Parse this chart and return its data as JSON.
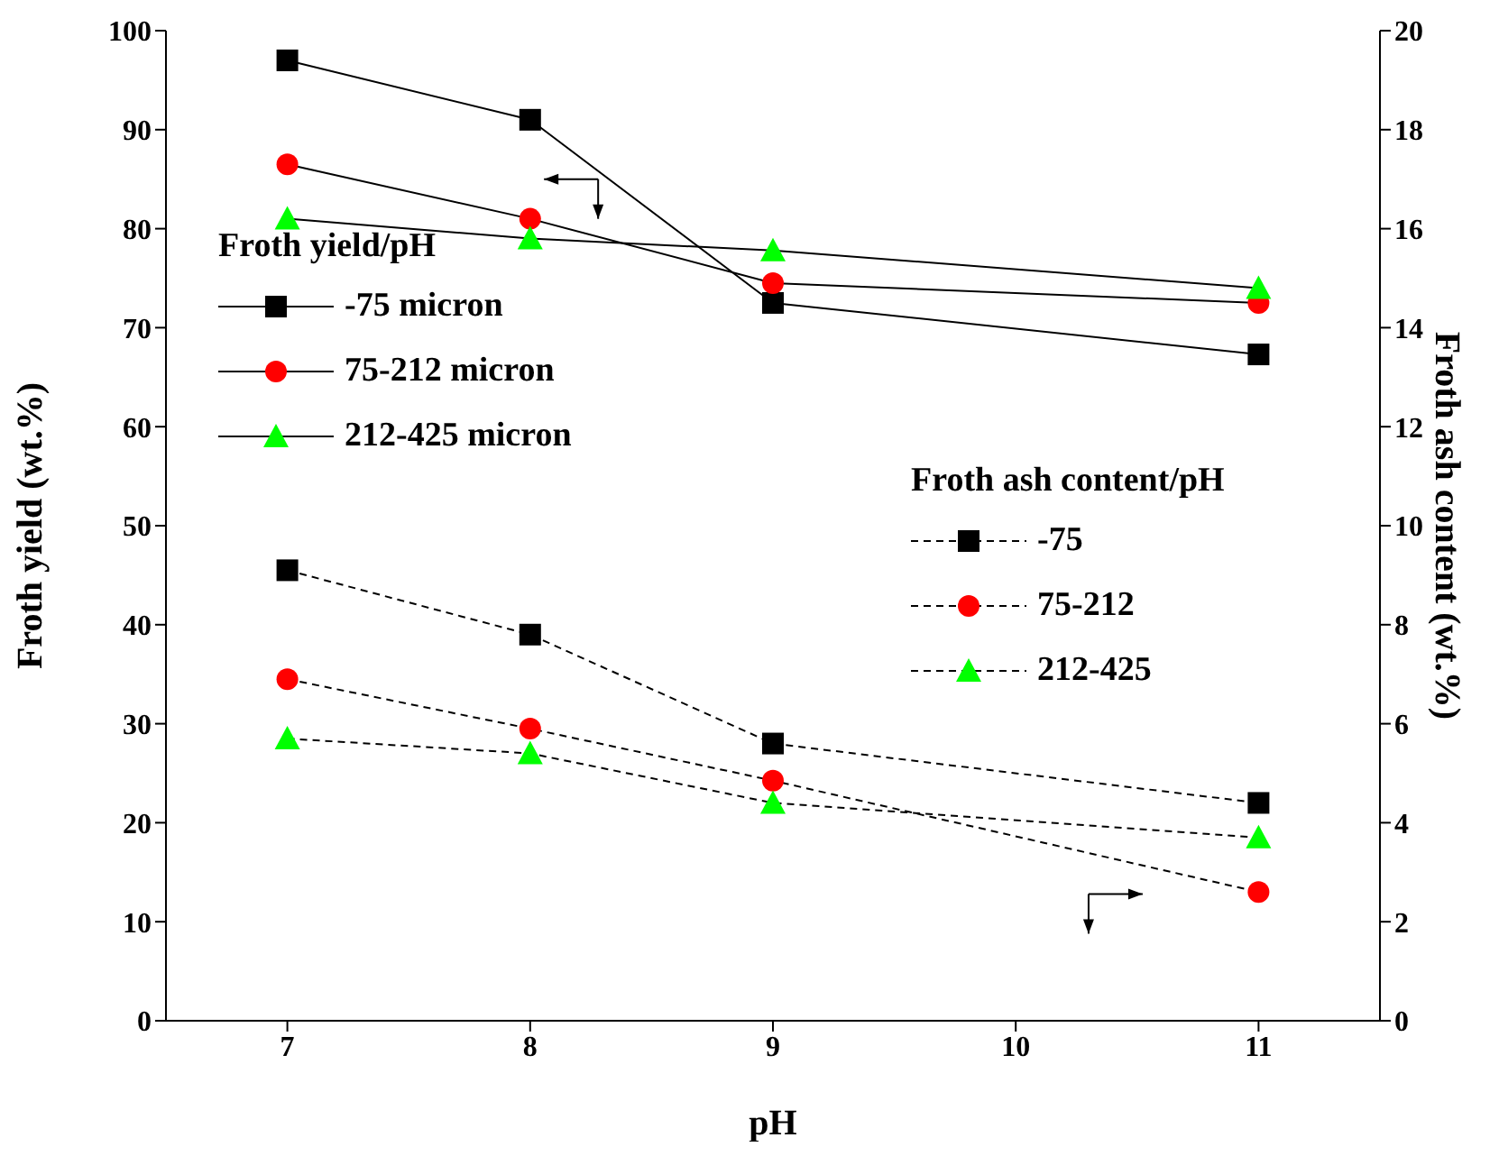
{
  "chart_data": {
    "type": "line",
    "xlabel": "pH",
    "ylabel": "Froth yield (wt.%)",
    "y2label": "Froth ash content (wt.%)",
    "legend_title": "Froth yield/pH",
    "annotations": [
      "Froth ash content/pH"
    ],
    "legend": "left",
    "x": [
      7,
      8,
      9,
      11
    ],
    "xlim": [
      6.5,
      11.5
    ],
    "xticks": [
      7,
      8,
      9,
      10,
      11
    ],
    "ylim": [
      0,
      100
    ],
    "yticks": [
      0,
      10,
      20,
      30,
      40,
      50,
      60,
      70,
      80,
      90,
      100
    ],
    "y2lim": [
      0,
      20
    ],
    "y2ticks": [
      0,
      2,
      4,
      6,
      8,
      10,
      12,
      14,
      16,
      18,
      20
    ],
    "grid": false,
    "series": [
      {
        "name": "-75 micron",
        "color": "#000000",
        "marker": "square",
        "line_style": "solid",
        "values": [
          97,
          91,
          72.5,
          67.3
        ]
      },
      {
        "name": "75-212 micron",
        "color": "#ff0000",
        "marker": "circle",
        "line_style": "solid",
        "values": [
          86.5,
          81,
          74.5,
          72.5
        ]
      },
      {
        "name": "212-425 micron",
        "color": "#00ff00",
        "marker": "triangle",
        "line_style": "solid",
        "values": [
          81,
          79,
          77.8,
          74
        ]
      },
      {
        "name": "-75",
        "color": "#000000",
        "marker": "square",
        "line_style": "dashed",
        "axis": "y2",
        "values": [
          9.1,
          7.8,
          5.6,
          4.4
        ]
      },
      {
        "name": "75-212",
        "color": "#ff0000",
        "marker": "circle",
        "line_style": "dashed",
        "axis": "y2",
        "values": [
          6.9,
          5.9,
          4.85,
          2.6
        ]
      },
      {
        "name": "212-425",
        "color": "#00ff00",
        "marker": "triangle",
        "line_style": "dashed",
        "axis": "y2",
        "values": [
          5.7,
          5.4,
          4.4,
          3.7
        ]
      }
    ]
  }
}
